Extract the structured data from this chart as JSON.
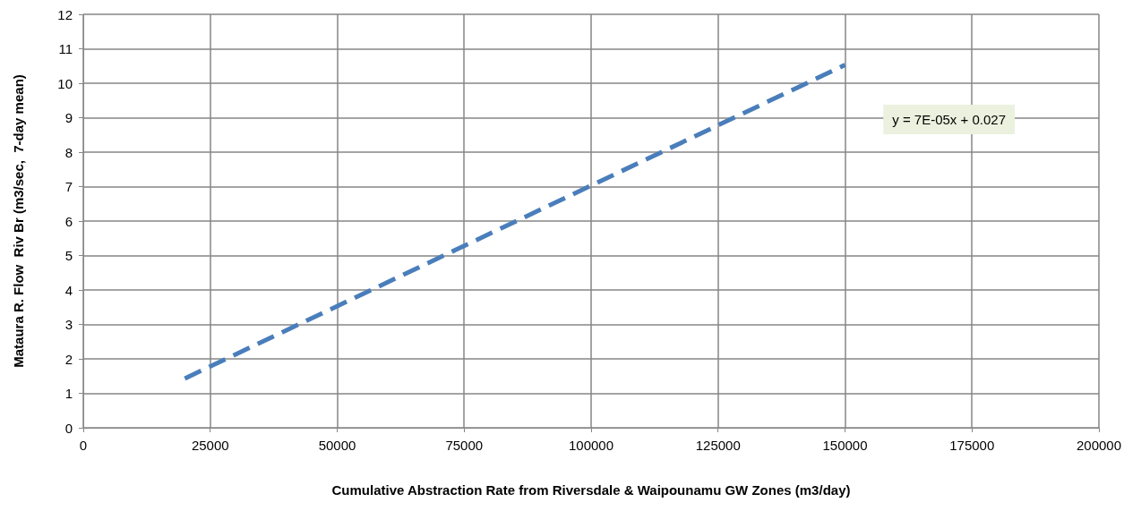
{
  "chart_data": {
    "type": "line",
    "xlabel": "Cumulative Abstraction Rate from Riversdale & Waipounamu GW Zones (m3/day)",
    "ylabel": "Mataura R. Flow  Riv Br (m3/sec,  7-day mean)",
    "annotations": [
      "y = 7E-05x + 0.027"
    ],
    "series": [
      {
        "color": "#4a7ebb",
        "x": [
          20000,
          150000
        ],
        "values": [
          1.43,
          10.53
        ]
      }
    ],
    "xlim": [
      0,
      200000
    ],
    "xticks": [
      0,
      25000,
      50000,
      75000,
      100000,
      125000,
      150000,
      175000,
      200000
    ],
    "ylim": [
      0,
      12
    ],
    "yticks": [
      0,
      1,
      2,
      3,
      4,
      5,
      6,
      7,
      8,
      9,
      10,
      11,
      12
    ],
    "grid": true,
    "marker": "none",
    "line_style": "dashed"
  }
}
